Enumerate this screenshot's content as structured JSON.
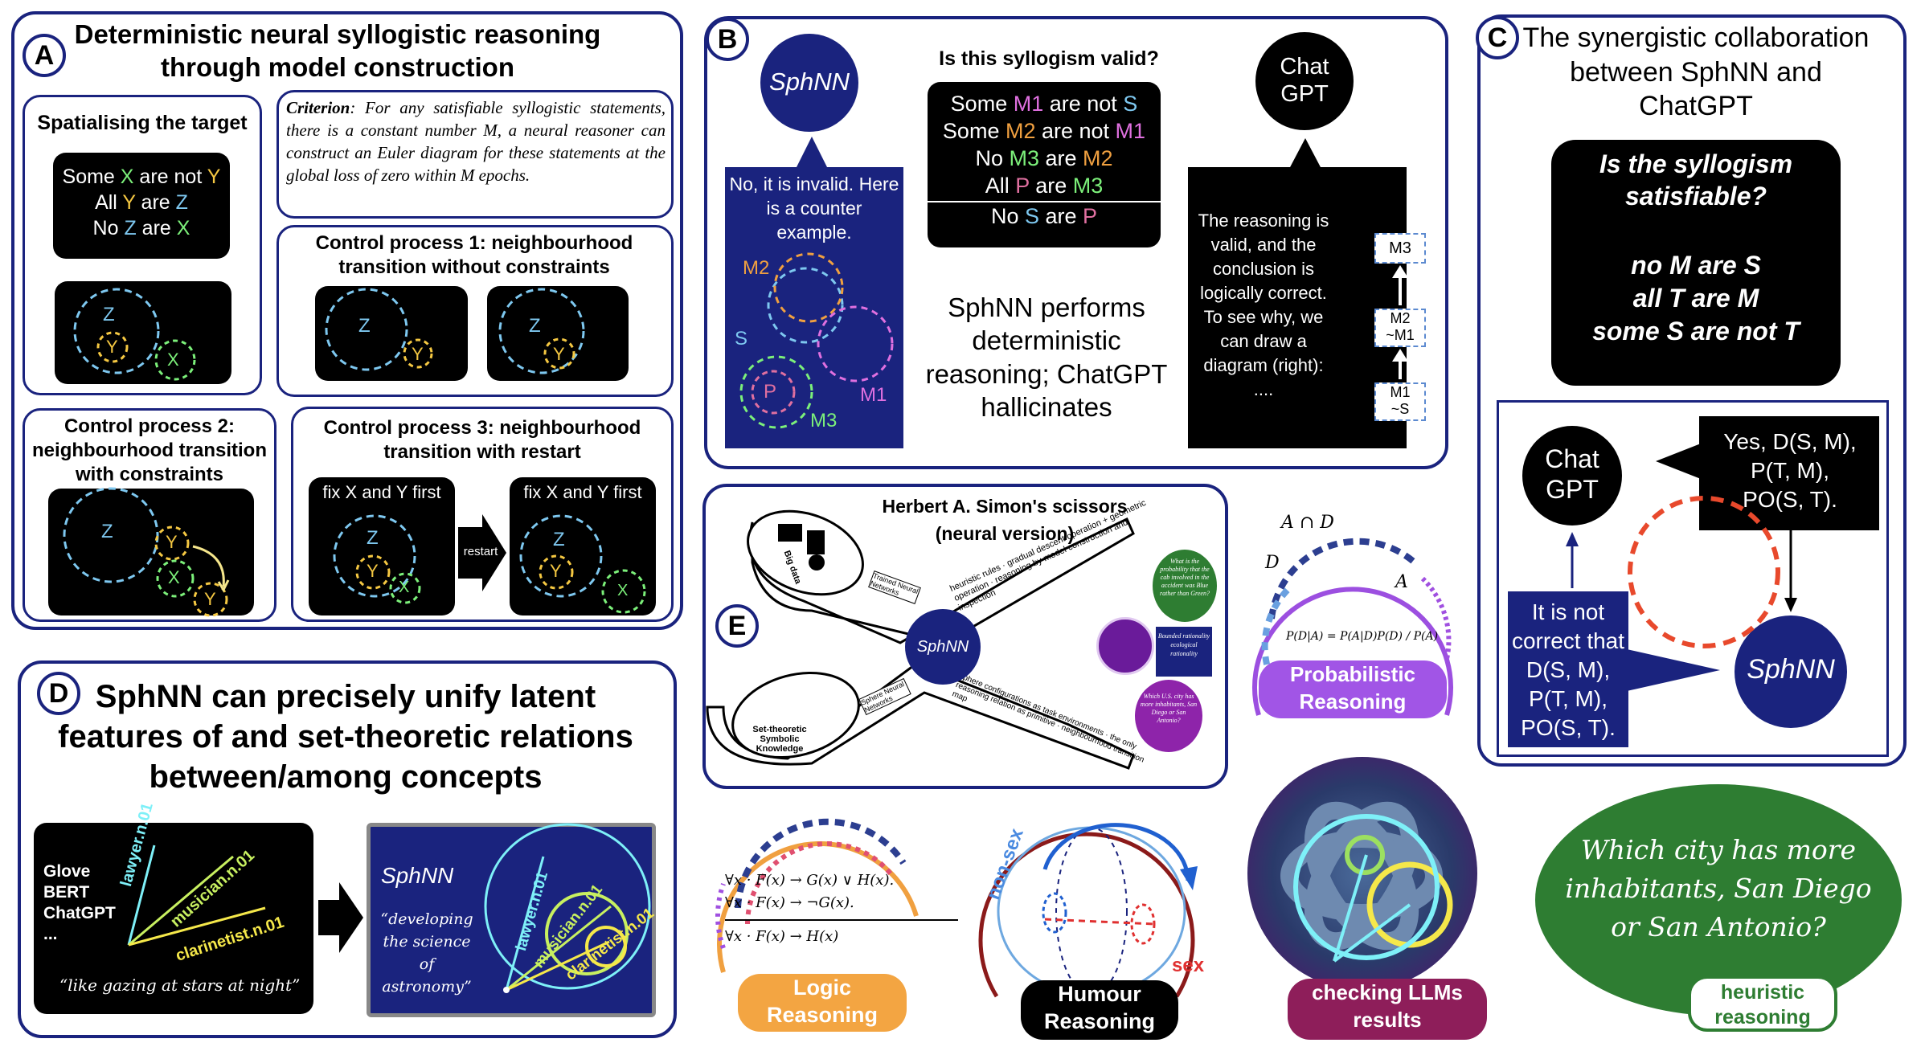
{
  "panel_a": {
    "badge": "A",
    "title": "Deterministic neural syllogistic reasoning through model construction",
    "spatialising_title": "Spatialising the target",
    "premises": [
      {
        "pre": "Some ",
        "a": "X",
        "mid": " are not ",
        "b": "Y"
      },
      {
        "pre": "All ",
        "a": "Y",
        "mid": " are ",
        "b": "Z"
      },
      {
        "pre": "No ",
        "a": "Z",
        "mid": " are ",
        "b": "X"
      }
    ],
    "criterion_label": "Criterion",
    "criterion_text": ": For any satisfiable syllogistic statements, there is a constant number M, a neural reasoner can construct an Euler diagram for these statements at the global loss of zero within M epochs.",
    "control1_title": "Control process 1: neighbourhood transition without constraints",
    "control2_title": "Control process 2: neighbourhood transition with constraints",
    "control3_title": "Control process 3: neighbourhood transition with restart",
    "fix_label": "fix X and Y first",
    "restart_label": "restart",
    "labels": {
      "x": "X",
      "y": "Y",
      "z": "Z"
    }
  },
  "panel_b": {
    "badge": "B",
    "sphnn": "SphNN",
    "question": "Is this syllogism valid?",
    "syllogism": [
      {
        "pre": "Some ",
        "a": "M1",
        "mid": " are not ",
        "b": "S"
      },
      {
        "pre": "Some ",
        "a": "M2",
        "mid": " are not ",
        "b": "M1"
      },
      {
        "pre": "No ",
        "a": "M3",
        "mid": " are  ",
        "b": "M2"
      },
      {
        "pre": "All ",
        "a": "P",
        "mid": " are ",
        "b": "M3"
      }
    ],
    "conclusion": {
      "pre": "No ",
      "a": "S",
      "mid": " are ",
      "b": "P"
    },
    "sphnn_reply": "No, it is invalid. Here is a counter example.",
    "circle_labels": {
      "m2": "M2",
      "s": "S",
      "p": "P",
      "m1": "M1",
      "m3": "M3"
    },
    "chatgpt": "Chat GPT",
    "chatgpt_reply": "The reasoning is valid, and the conclusion is logically correct. To see why, we can draw a diagram (right): ....",
    "chain": [
      "M3",
      "M2",
      "~M1",
      "M1",
      "~S"
    ],
    "summary": "SphNN performs deterministic reasoning; ChatGPT hallicinates"
  },
  "panel_c": {
    "badge": "C",
    "title": "The synergistic collaboration between SphNN and ChatGPT",
    "question": "Is the syllogism satisfiable?",
    "statements": [
      "no M are S",
      "all T are M",
      "some S are not T"
    ],
    "chatgpt": "Chat GPT",
    "chatgpt_reply": [
      "Yes, D(S, M),",
      "P(T, M),",
      "PO(S, T)."
    ],
    "sphnn": "SphNN",
    "sphnn_reply": [
      "It is not",
      "correct that",
      "D(S, M),",
      "P(T, M),",
      "PO(S, T)."
    ]
  },
  "panel_d": {
    "badge": "D",
    "title": "SphNN can precisely unify latent features of and set-theoretic relations between/among concepts",
    "models": [
      "Glove",
      "BERT",
      "ChatGPT",
      "..."
    ],
    "vectors": [
      "lawyer.n.01",
      "musician.n.01",
      "clarinetist.n.01"
    ],
    "quote_left": "“like gazing at stars at night”",
    "sphnn": "SphNN",
    "quote_right": "“developing the science of astronomy”"
  },
  "panel_e": {
    "badge": "E",
    "title": "Herbert A. Simon's scissors",
    "subtitle": "(neural version)",
    "big_data": "Big data",
    "symbolic": "Set-theoretic Symbolic Knowledge",
    "trained_nets": "Trained Neural Networks",
    "sphere_nets": "Sphere Neural Networks",
    "upper_blade": "heuristic rules · gradual descent operation + geometric operation · reasoning by model construction and inspection",
    "lower_blade": "sphere configurations as task environments · the only reasoning relation as primitive · neighbourhood transition map",
    "center": "SphNN",
    "bubble_1": "What is the probability that the cab involved in the accident was Blue rather than Green?",
    "bubble_2": "Bounded rationality ecological rationality",
    "bubble_3": "Which U.S. city has more inhabitants, San Diego or San Antonio?"
  },
  "tiles": {
    "probabilistic": "Probabilistic Reasoning",
    "prob_formula": "P(D|A) = P(A|D)P(D) / P(A)",
    "prob_a_and_d": "A ∩ D",
    "prob_d": "D",
    "prob_a": "A",
    "logic": "Logic Reasoning",
    "logic_lines": [
      "∀x · F(x) → G(x) ∨ H(x).",
      "∀x · F(x) → ¬G(x).",
      "∀x · F(x) → H(x)"
    ],
    "humour": "Humour Reasoning",
    "humour_nonsex": "non-sex",
    "humour_sex": "sex",
    "llm": "checking LLMs results",
    "heuristic_question": "Which city has more inhabitants, San Diego or San Antonio?",
    "heuristic": "heuristic reasoning"
  },
  "colors": {
    "navy": "#1a237e",
    "green": "#7cf07a",
    "yellow": "#f5c842",
    "blue": "#7ec8f0",
    "pink": "#e070e0",
    "orange": "#f0a040",
    "purple": "#a050e0",
    "dark_green": "#2e7d32"
  }
}
